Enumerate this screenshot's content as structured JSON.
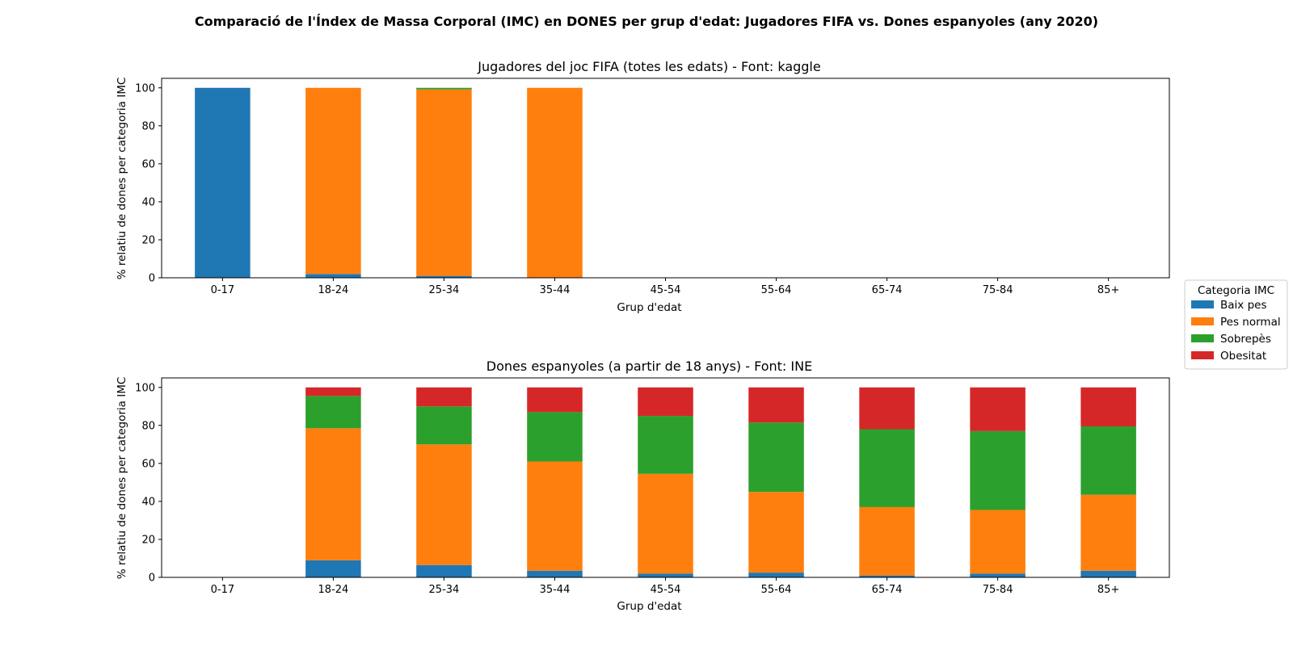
{
  "figure_title": "Comparació de l'Índex de Massa Corporal (IMC) en DONES per grup d'edat: Jugadores FIFA vs. Dones espanyoles    (any 2020)",
  "legend": {
    "title": "Categoria IMC",
    "placement": "right-center",
    "items": [
      {
        "name": "Baix pes",
        "color": "#1f77b4"
      },
      {
        "name": "Pes normal",
        "color": "#ff7f0e"
      },
      {
        "name": "Sobrepès",
        "color": "#2ca02c"
      },
      {
        "name": "Obesitat",
        "color": "#d62728"
      }
    ]
  },
  "chart_data": [
    {
      "type": "bar",
      "stacked": true,
      "title": "Jugadores del joc FIFA (totes les edats)  -  Font: kaggle",
      "xlabel": "Grup d'edat",
      "ylabel": "% relatiu de dones per categoria IMC",
      "ylim": [
        0,
        105
      ],
      "yticks": [
        0,
        20,
        40,
        60,
        80,
        100
      ],
      "categories": [
        "0-17",
        "18-24",
        "25-34",
        "35-44",
        "45-54",
        "55-64",
        "65-74",
        "75-84",
        "85+"
      ],
      "series": [
        {
          "name": "Baix pes",
          "values": [
            100,
            2,
            1,
            0,
            0,
            0,
            0,
            0,
            0
          ]
        },
        {
          "name": "Pes normal",
          "values": [
            0,
            98,
            98.2,
            100,
            0,
            0,
            0,
            0,
            0
          ]
        },
        {
          "name": "Sobrepès",
          "values": [
            0,
            0,
            0.8,
            0,
            0,
            0,
            0,
            0,
            0
          ]
        },
        {
          "name": "Obesitat",
          "values": [
            0,
            0,
            0,
            0,
            0,
            0,
            0,
            0,
            0
          ]
        }
      ]
    },
    {
      "type": "bar",
      "stacked": true,
      "title": "Dones espanyoles (a partir de 18 anys)  -  Font: INE",
      "xlabel": "Grup d'edat",
      "ylabel": "% relatiu de dones per categoria IMC",
      "ylim": [
        0,
        105
      ],
      "yticks": [
        0,
        20,
        40,
        60,
        80,
        100
      ],
      "categories": [
        "0-17",
        "18-24",
        "25-34",
        "35-44",
        "45-54",
        "55-64",
        "65-74",
        "75-84",
        "85+"
      ],
      "series": [
        {
          "name": "Baix pes",
          "values": [
            0,
            9,
            6.5,
            3.5,
            2,
            2.5,
            1,
            2,
            3.5
          ]
        },
        {
          "name": "Pes normal",
          "values": [
            0,
            69.5,
            63.5,
            57.5,
            52.5,
            42.5,
            36,
            33.5,
            40
          ]
        },
        {
          "name": "Sobrepès",
          "values": [
            0,
            17,
            20,
            26,
            30.5,
            36.5,
            41,
            41.5,
            36
          ]
        },
        {
          "name": "Obesitat",
          "values": [
            0,
            4.5,
            10,
            13,
            15,
            18.5,
            22,
            23,
            20.5
          ]
        }
      ]
    }
  ]
}
